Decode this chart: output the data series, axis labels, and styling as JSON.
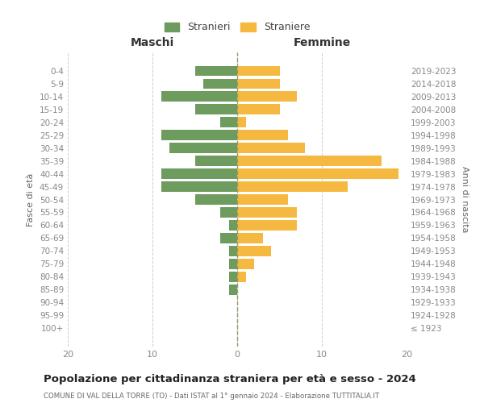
{
  "age_groups": [
    "100+",
    "95-99",
    "90-94",
    "85-89",
    "80-84",
    "75-79",
    "70-74",
    "65-69",
    "60-64",
    "55-59",
    "50-54",
    "45-49",
    "40-44",
    "35-39",
    "30-34",
    "25-29",
    "20-24",
    "15-19",
    "10-14",
    "5-9",
    "0-4"
  ],
  "birth_years": [
    "≤ 1923",
    "1924-1928",
    "1929-1933",
    "1934-1938",
    "1939-1943",
    "1944-1948",
    "1949-1953",
    "1954-1958",
    "1959-1963",
    "1964-1968",
    "1969-1973",
    "1974-1978",
    "1979-1983",
    "1984-1988",
    "1989-1993",
    "1994-1998",
    "1999-2003",
    "2004-2008",
    "2009-2013",
    "2014-2018",
    "2019-2023"
  ],
  "maschi": [
    0,
    0,
    0,
    1,
    1,
    1,
    1,
    2,
    1,
    2,
    5,
    9,
    9,
    5,
    8,
    9,
    2,
    5,
    9,
    4,
    5
  ],
  "femmine": [
    0,
    0,
    0,
    0,
    1,
    2,
    4,
    3,
    7,
    7,
    6,
    13,
    19,
    17,
    8,
    6,
    1,
    5,
    7,
    5,
    5
  ],
  "color_maschi": "#6e9b5e",
  "color_femmine": "#f5b942",
  "xlim": 20,
  "title": "Popolazione per cittadinanza straniera per età e sesso - 2024",
  "subtitle": "COMUNE DI VAL DELLA TORRE (TO) - Dati ISTAT al 1° gennaio 2024 - Elaborazione TUTTITALIA.IT",
  "xlabel_left": "Maschi",
  "xlabel_right": "Femmine",
  "ylabel_left": "Fasce di età",
  "ylabel_right": "Anni di nascita",
  "legend_maschi": "Stranieri",
  "legend_femmine": "Straniere",
  "bg_color": "#ffffff",
  "grid_color": "#cccccc",
  "bar_height": 0.8
}
